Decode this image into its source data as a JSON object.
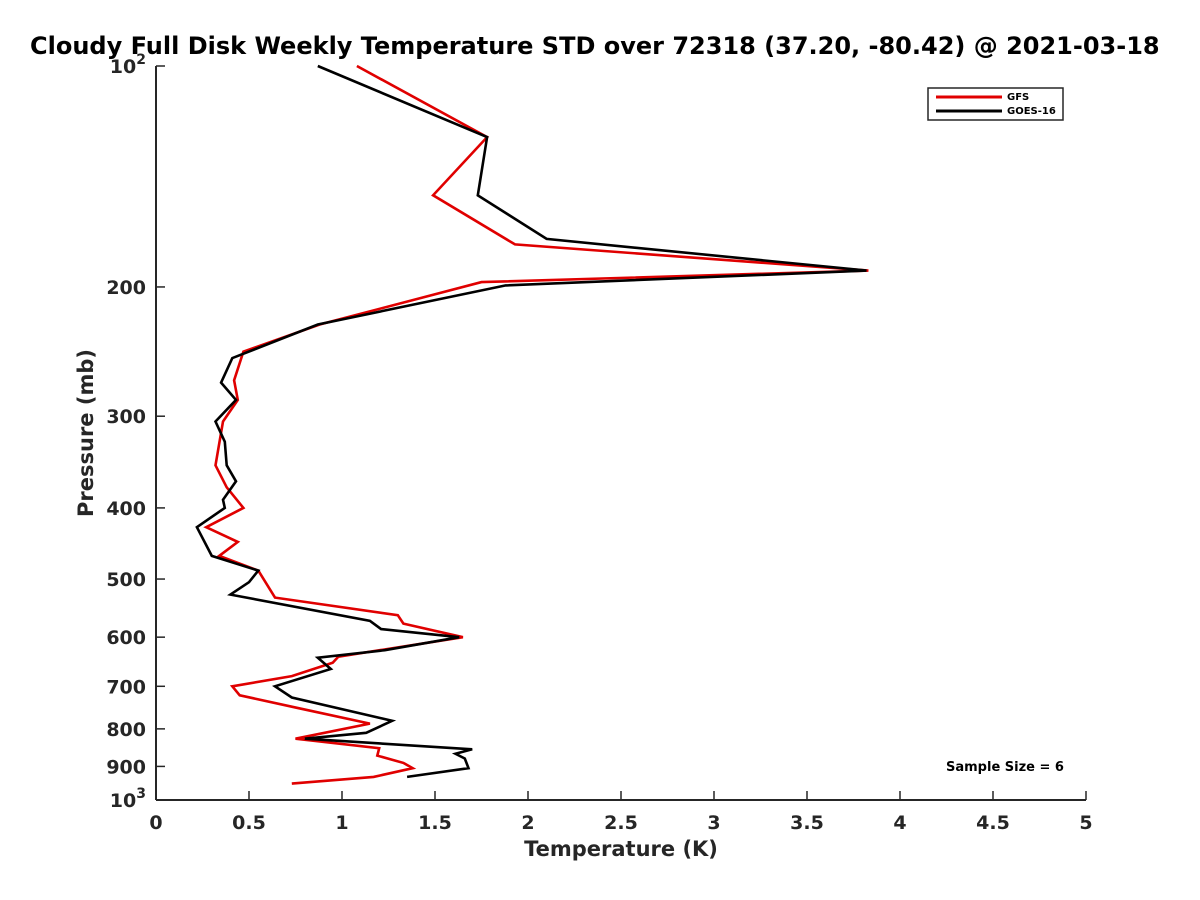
{
  "chart_data": {
    "type": "line",
    "title": "Cloudy Full Disk Weekly Temperature STD over 72318 (37.20, -80.42) @ 2021-03-18",
    "xlabel": "Temperature (K)",
    "ylabel": "Pressure (mb)",
    "xlim": [
      0,
      5
    ],
    "ylim": [
      100,
      1000
    ],
    "y_scale": "log",
    "y_reversed": true,
    "x_ticks": [
      "0",
      "0.5",
      "1",
      "1.5",
      "2",
      "2.5",
      "3",
      "3.5",
      "4",
      "4.5",
      "5"
    ],
    "x_tick_values": [
      0,
      0.5,
      1,
      1.5,
      2,
      2.5,
      3,
      3.5,
      4,
      4.5,
      5
    ],
    "y_ticks": [
      {
        "value": 100,
        "base": "10",
        "exp": "2"
      },
      {
        "value": 200,
        "label": "200"
      },
      {
        "value": 300,
        "label": "300"
      },
      {
        "value": 400,
        "label": "400"
      },
      {
        "value": 500,
        "label": "500"
      },
      {
        "value": 600,
        "label": "600"
      },
      {
        "value": 700,
        "label": "700"
      },
      {
        "value": 800,
        "label": "800"
      },
      {
        "value": 900,
        "label": "900"
      },
      {
        "value": 1000,
        "base": "10",
        "exp": "3"
      }
    ],
    "legend_position": "top-right",
    "annotation": "Sample Size = 6",
    "series": [
      {
        "name": "GFS",
        "color": "#e00000",
        "points": [
          [
            1.08,
            100
          ],
          [
            1.78,
            125
          ],
          [
            1.49,
            150
          ],
          [
            1.93,
            175
          ],
          [
            3.83,
            190
          ],
          [
            1.75,
            197
          ],
          [
            0.88,
            225
          ],
          [
            0.47,
            245
          ],
          [
            0.42,
            268
          ],
          [
            0.44,
            285
          ],
          [
            0.36,
            305
          ],
          [
            0.32,
            350
          ],
          [
            0.38,
            375
          ],
          [
            0.47,
            400
          ],
          [
            0.27,
            425
          ],
          [
            0.44,
            445
          ],
          [
            0.34,
            465
          ],
          [
            0.55,
            487
          ],
          [
            0.64,
            530
          ],
          [
            1.3,
            560
          ],
          [
            1.33,
            575
          ],
          [
            1.65,
            600
          ],
          [
            0.98,
            638
          ],
          [
            0.95,
            650
          ],
          [
            0.73,
            678
          ],
          [
            0.41,
            700
          ],
          [
            0.45,
            720
          ],
          [
            0.77,
            750
          ],
          [
            1.15,
            787
          ],
          [
            0.75,
            825
          ],
          [
            1.2,
            850
          ],
          [
            1.19,
            870
          ],
          [
            1.33,
            890
          ],
          [
            1.38,
            905
          ],
          [
            1.17,
            930
          ],
          [
            0.73,
            950
          ]
        ]
      },
      {
        "name": "GOES-16",
        "color": "#000000",
        "points": [
          [
            0.87,
            100
          ],
          [
            1.78,
            125
          ],
          [
            1.73,
            150
          ],
          [
            2.1,
            172
          ],
          [
            3.82,
            190
          ],
          [
            1.88,
            199
          ],
          [
            0.87,
            225
          ],
          [
            0.41,
            250
          ],
          [
            0.35,
            270
          ],
          [
            0.43,
            285
          ],
          [
            0.32,
            305
          ],
          [
            0.37,
            325
          ],
          [
            0.38,
            350
          ],
          [
            0.43,
            368
          ],
          [
            0.36,
            390
          ],
          [
            0.37,
            400
          ],
          [
            0.22,
            425
          ],
          [
            0.3,
            465
          ],
          [
            0.55,
            487
          ],
          [
            0.5,
            505
          ],
          [
            0.4,
            525
          ],
          [
            1.15,
            570
          ],
          [
            1.21,
            585
          ],
          [
            1.63,
            600
          ],
          [
            1.23,
            625
          ],
          [
            0.87,
            640
          ],
          [
            0.94,
            663
          ],
          [
            0.64,
            700
          ],
          [
            0.73,
            725
          ],
          [
            1.27,
            780
          ],
          [
            1.13,
            810
          ],
          [
            0.8,
            825
          ],
          [
            1.7,
            853
          ],
          [
            1.61,
            865
          ],
          [
            1.66,
            878
          ],
          [
            1.68,
            905
          ],
          [
            1.35,
            930
          ]
        ]
      }
    ]
  }
}
